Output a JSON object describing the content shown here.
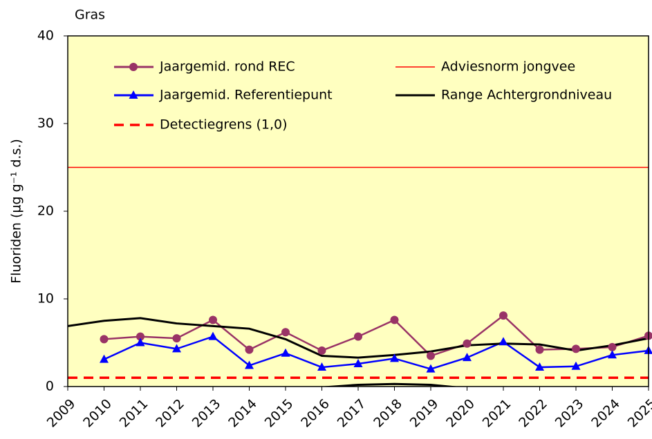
{
  "chart_data": {
    "type": "line",
    "title": "Gras",
    "y_label": "Fluoriden (µg g⁻¹ d.s.)",
    "x": [
      2009,
      2010,
      2011,
      2012,
      2013,
      2014,
      2015,
      2016,
      2017,
      2018,
      2019,
      2020,
      2021,
      2022,
      2023,
      2024,
      2025
    ],
    "xlim": [
      2009,
      2025
    ],
    "xticks": [
      2009,
      2010,
      2011,
      2012,
      2013,
      2014,
      2015,
      2016,
      2017,
      2018,
      2019,
      2020,
      2021,
      2022,
      2023,
      2024,
      2025
    ],
    "ylim": [
      0,
      40
    ],
    "yticks": [
      0,
      10,
      20,
      30,
      40
    ],
    "background": "#ffffc0",
    "series": [
      {
        "name": "Jaargemid. rond REC",
        "color": "#993366",
        "marker": "circle",
        "values": [
          null,
          5.4,
          5.7,
          5.5,
          7.6,
          4.2,
          6.2,
          4.1,
          5.7,
          7.6,
          3.5,
          4.9,
          8.1,
          4.2,
          4.3,
          4.5,
          5.8
        ]
      },
      {
        "name": "Adviesnorm jongvee",
        "color": "#ff0000",
        "style": "hline",
        "value": 25
      },
      {
        "name": "Jaargemid. Referentiepunt",
        "color": "#0000ff",
        "marker": "triangle",
        "values": [
          null,
          3.1,
          5.0,
          4.3,
          5.7,
          2.4,
          3.8,
          2.2,
          2.6,
          3.2,
          2.0,
          3.3,
          5.1,
          2.2,
          2.3,
          3.6,
          4.1
        ]
      },
      {
        "name": "Range Achtergrondniveau",
        "color": "#000000",
        "style": "range",
        "values": [
          6.9,
          7.5,
          7.8,
          7.2,
          6.9,
          6.6,
          5.4,
          3.5,
          3.3,
          3.6,
          4.0,
          4.7,
          4.9,
          4.8,
          4.1,
          4.7,
          5.5
        ],
        "values_low": [
          null,
          null,
          null,
          null,
          null,
          null,
          null,
          -0.1,
          0.2,
          0.3,
          0.2,
          -0.2,
          null,
          null,
          null,
          null,
          null
        ]
      },
      {
        "name": "Detectiegrens (1,0)",
        "color": "#ff0000",
        "style": "dashed-hline",
        "value": 1.0
      }
    ]
  }
}
